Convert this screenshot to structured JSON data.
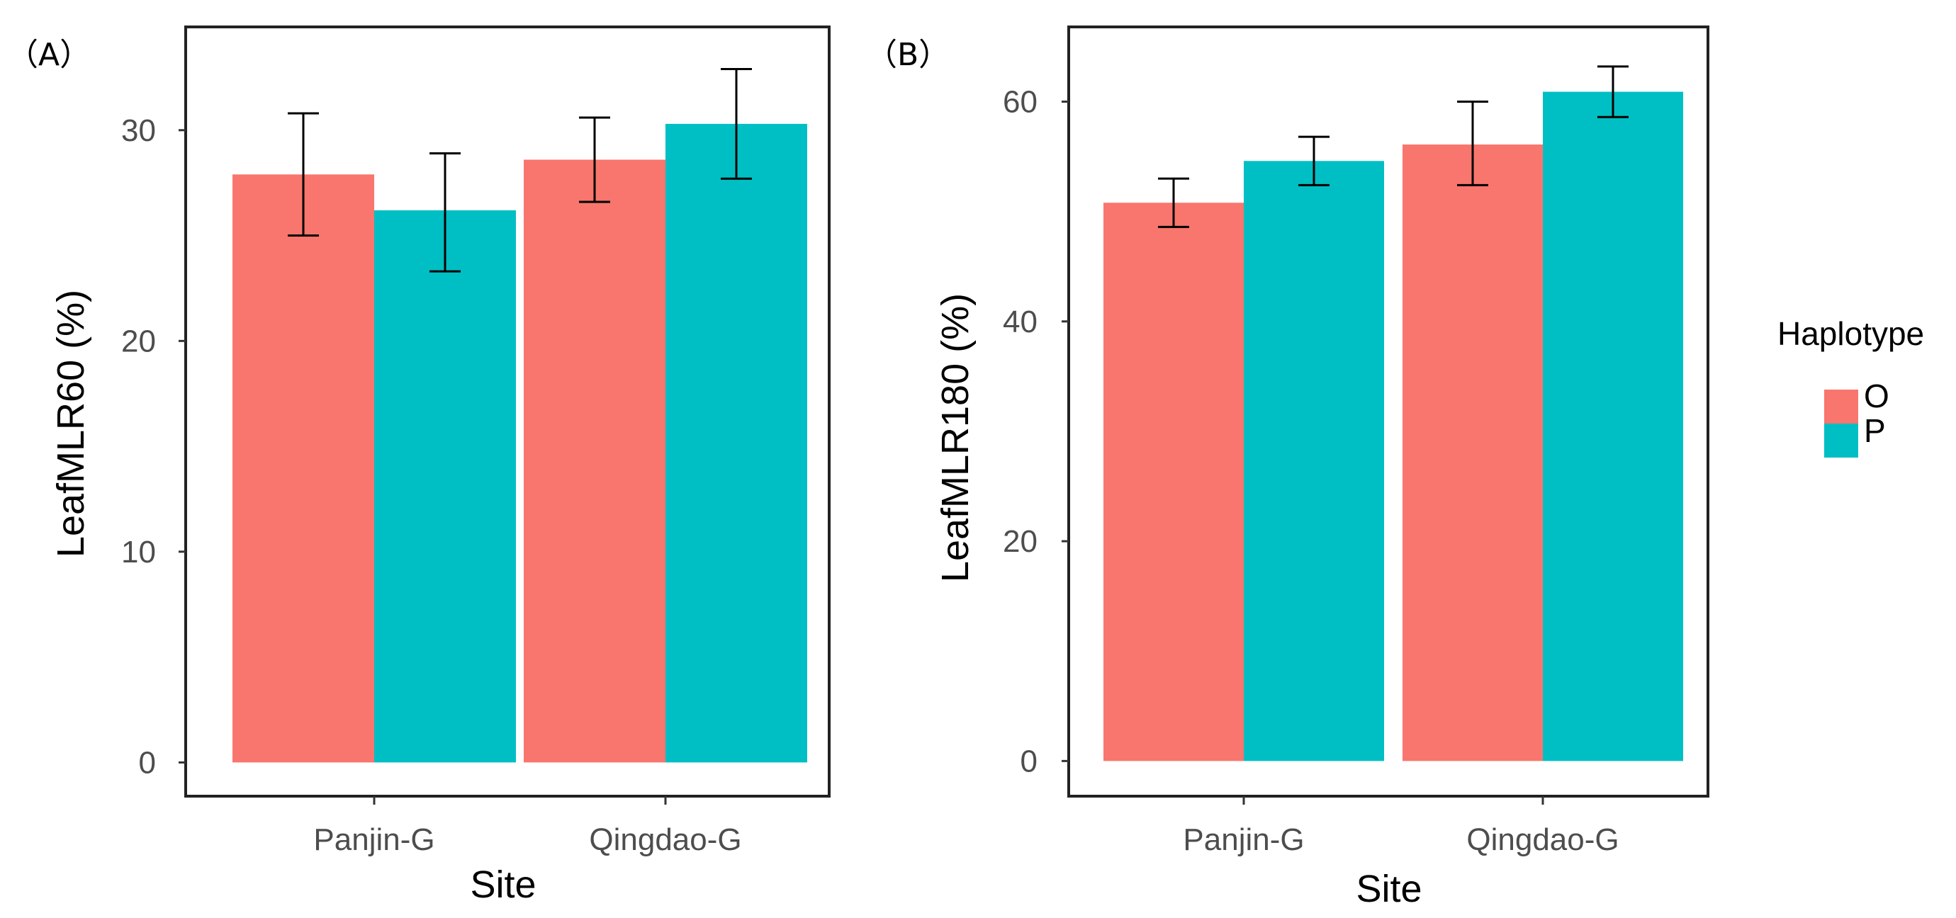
{
  "legend": {
    "title": "Haplotype",
    "items": [
      {
        "label": "O",
        "color": "#F8766D"
      },
      {
        "label": "P",
        "color": "#00BFC4"
      }
    ]
  },
  "chart_data": [
    {
      "type": "bar",
      "panel_label": "（A）",
      "xlabel": "Site",
      "ylabel": "LeafMLR60 (%)",
      "categories": [
        "Panjin-G",
        "Qingdao-G"
      ],
      "yticks": [
        0,
        10,
        20,
        30
      ],
      "ylim": [
        -1.6,
        34.9
      ],
      "series": [
        {
          "name": "O",
          "color": "#F8766D",
          "values": [
            27.9,
            28.6
          ],
          "err_low": [
            25.0,
            26.6
          ],
          "err_high": [
            30.8,
            30.6
          ]
        },
        {
          "name": "P",
          "color": "#00BFC4",
          "values": [
            26.2,
            30.3
          ],
          "err_low": [
            23.3,
            27.7
          ],
          "err_high": [
            28.9,
            32.9
          ]
        }
      ],
      "grid": false
    },
    {
      "type": "bar",
      "panel_label": "（B）",
      "xlabel": "Site",
      "ylabel": "LeafMLR180 (%)",
      "categories": [
        "Panjin-G",
        "Qingdao-G"
      ],
      "yticks": [
        0,
        20,
        40,
        60
      ],
      "ylim": [
        -3.2,
        66.8
      ],
      "series": [
        {
          "name": "O",
          "color": "#F8766D",
          "values": [
            50.8,
            56.1
          ],
          "err_low": [
            48.6,
            52.4
          ],
          "err_high": [
            53.0,
            60.0
          ]
        },
        {
          "name": "P",
          "color": "#00BFC4",
          "values": [
            54.6,
            60.9
          ],
          "err_low": [
            52.4,
            58.6
          ],
          "err_high": [
            56.8,
            63.2
          ]
        }
      ],
      "grid": false
    }
  ]
}
